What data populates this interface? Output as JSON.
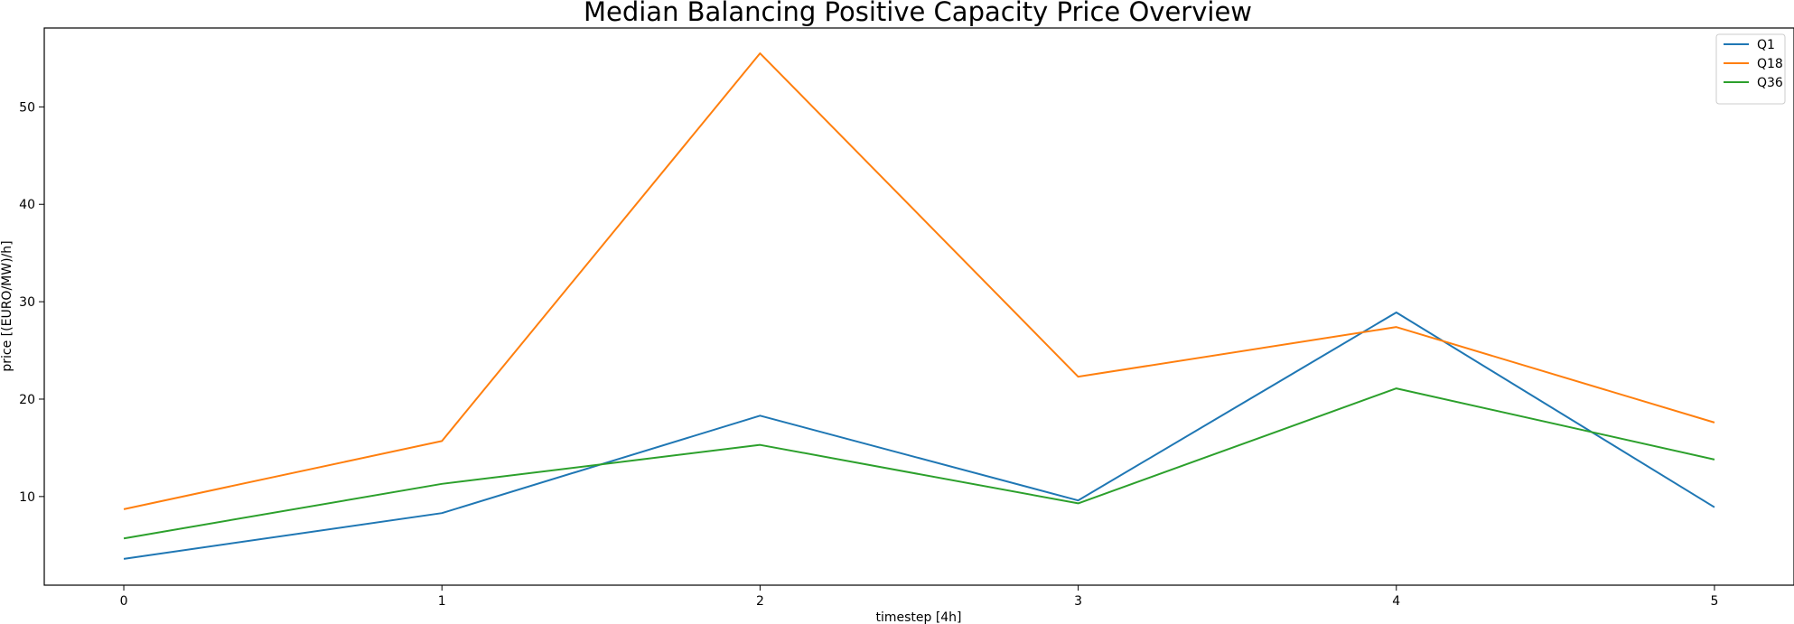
{
  "chart_data": {
    "type": "line",
    "title": "Median Balancing Positive Capacity Price Overview",
    "xlabel": "timestep [4h]",
    "ylabel": "price [(EURO/MW)/h]",
    "x": [
      0,
      1,
      2,
      3,
      4,
      5
    ],
    "x_ticks": [
      "0",
      "1",
      "2",
      "3",
      "4",
      "5"
    ],
    "y_ticks": [
      "10",
      "20",
      "30",
      "40",
      "50"
    ],
    "xlim": [
      -0.25,
      5.25
    ],
    "ylim": [
      0.9,
      58.1
    ],
    "grid": false,
    "legend_position": "top-right",
    "series": [
      {
        "name": "Q1",
        "color": "#1f77b4",
        "values": [
          3.6,
          8.3,
          18.3,
          9.6,
          28.9,
          8.9
        ]
      },
      {
        "name": "Q18",
        "color": "#ff7f0e",
        "values": [
          8.7,
          15.7,
          55.5,
          22.3,
          27.4,
          17.6
        ]
      },
      {
        "name": "Q36",
        "color": "#2ca02c",
        "values": [
          5.7,
          11.3,
          15.3,
          9.3,
          21.1,
          13.8
        ]
      }
    ]
  }
}
